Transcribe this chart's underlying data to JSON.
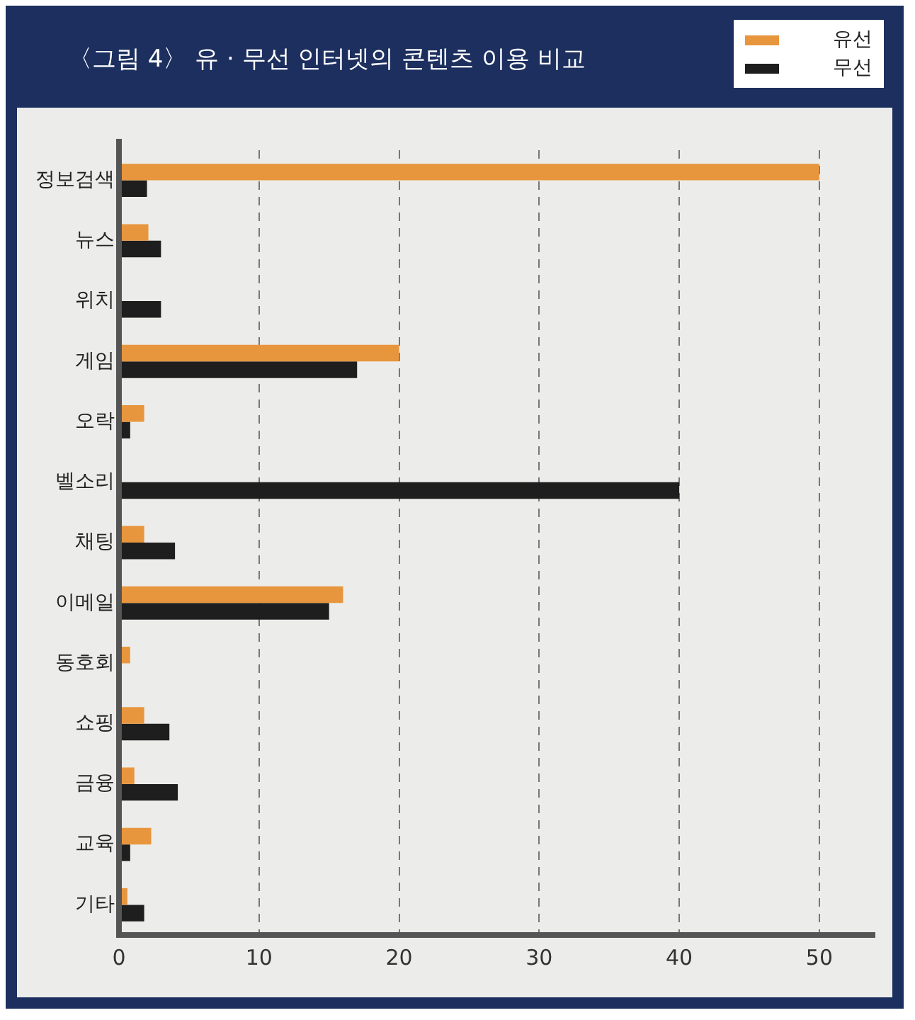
{
  "chart_data": {
    "type": "bar",
    "orientation": "horizontal",
    "title": "〈그림 4〉 유 · 무선 인터넷의 콘텐츠 이용 비교",
    "categories": [
      "정보검색",
      "뉴스",
      "위치",
      "게임",
      "오락",
      "벨소리",
      "채팅",
      "이메일",
      "동호회",
      "쇼핑",
      "금융",
      "교육",
      "기타"
    ],
    "series": [
      {
        "name": "유선",
        "color": "#e8963e",
        "values": [
          50,
          2.1,
          null,
          20,
          1.8,
          null,
          1.8,
          16,
          0.8,
          1.8,
          1.1,
          2.3,
          0.6
        ]
      },
      {
        "name": "무선",
        "color": "#1e1e1e",
        "values": [
          2,
          3,
          3,
          17,
          0.8,
          40,
          4,
          15,
          null,
          3.6,
          4.2,
          0.8,
          1.8
        ]
      }
    ],
    "xlim": [
      0,
      54
    ],
    "xticks": [
      0,
      10,
      20,
      30,
      40,
      50
    ],
    "grid": "x",
    "legend": "top right"
  }
}
